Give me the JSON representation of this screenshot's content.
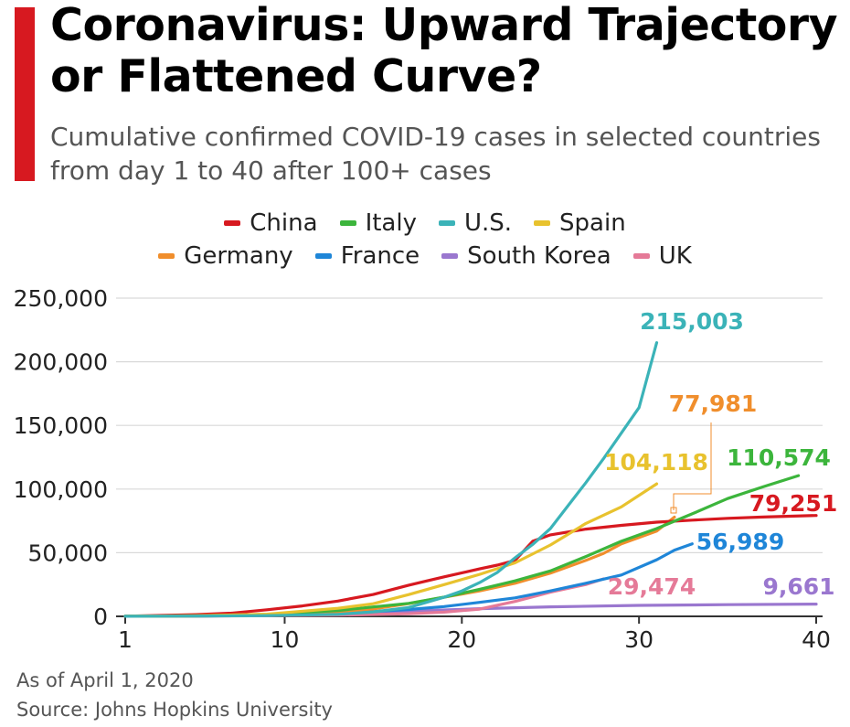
{
  "header": {
    "title": "Coronavirus: Upward Trajectory or Flattened Curve?",
    "subtitle": "Cumulative confirmed COVID-19 cases in selected countries from day 1 to 40 after 100+ cases"
  },
  "colors": {
    "accent": "#d71920",
    "china": "#d71920",
    "italy": "#3cb53c",
    "us": "#3bb3b8",
    "spain": "#e8c22e",
    "germany": "#f08e2c",
    "france": "#1f86d8",
    "south_korea": "#9a77cf",
    "uk": "#e57a98",
    "grid": "#d9d9d9",
    "axis": "#333333"
  },
  "footer": {
    "as_of": "As of April 1, 2020",
    "source": "Source: Johns Hopkins University"
  },
  "chart_data": {
    "type": "line",
    "x_ticks": [
      1,
      10,
      20,
      30,
      40
    ],
    "y_ticks": [
      0,
      50000,
      100000,
      150000,
      200000,
      250000
    ],
    "y_tick_labels": [
      "0",
      "50,000",
      "100,000",
      "150,000",
      "200,000",
      "250,000"
    ],
    "xlim": [
      1,
      40
    ],
    "ylim": [
      0,
      250000
    ],
    "grid": "horizontal",
    "legend_position": "top-center",
    "legend_rows": [
      [
        "china",
        "italy",
        "us",
        "spain"
      ],
      [
        "germany",
        "france",
        "south_korea",
        "uk"
      ]
    ],
    "series": [
      {
        "key": "china",
        "name": "China",
        "color": "#d71920",
        "end_label": "79,251",
        "x": [
          1,
          3,
          5,
          7,
          9,
          11,
          13,
          15,
          17,
          19,
          21,
          22,
          23,
          24,
          25,
          27,
          29,
          31,
          33,
          35,
          37,
          40
        ],
        "y": [
          100,
          700,
          1400,
          2500,
          5200,
          8200,
          12000,
          17200,
          24500,
          31000,
          37300,
          40200,
          44000,
          59000,
          64000,
          68500,
          71500,
          74000,
          75600,
          77000,
          78000,
          79251
        ]
      },
      {
        "key": "italy",
        "name": "Italy",
        "color": "#3cb53c",
        "end_label": "110,574",
        "x": [
          1,
          5,
          9,
          13,
          15,
          17,
          19,
          21,
          23,
          25,
          27,
          29,
          31,
          33,
          35,
          37,
          39
        ],
        "y": [
          100,
          500,
          1600,
          4600,
          7400,
          10200,
          15100,
          21200,
          27900,
          35700,
          47000,
          59000,
          69000,
          80500,
          92500,
          101700,
          110574
        ]
      },
      {
        "key": "us",
        "name": "U.S.",
        "color": "#3bb3b8",
        "end_label": "215,003",
        "x": [
          1,
          5,
          9,
          13,
          15,
          17,
          19,
          20,
          21,
          22,
          23,
          24,
          25,
          26,
          27,
          28,
          29,
          30,
          31
        ],
        "y": [
          100,
          200,
          600,
          1600,
          3500,
          7000,
          15000,
          20000,
          26500,
          34500,
          46000,
          56500,
          69000,
          87000,
          105000,
          124000,
          144000,
          164000,
          215003
        ]
      },
      {
        "key": "spain",
        "name": "Spain",
        "color": "#e8c22e",
        "end_label": "104,118",
        "x": [
          1,
          5,
          9,
          13,
          15,
          17,
          19,
          21,
          23,
          25,
          27,
          29,
          31
        ],
        "y": [
          100,
          400,
          1700,
          6300,
          9900,
          17100,
          24900,
          33000,
          42000,
          56000,
          73000,
          86000,
          104118
        ]
      },
      {
        "key": "germany",
        "name": "Germany",
        "color": "#f08e2c",
        "end_label": "77,981",
        "x": [
          1,
          5,
          9,
          13,
          15,
          17,
          19,
          21,
          23,
          25,
          27,
          28,
          29,
          31,
          32
        ],
        "y": [
          100,
          300,
          900,
          3600,
          5800,
          10000,
          15000,
          20000,
          26000,
          34000,
          44000,
          49500,
          57000,
          67000,
          77981
        ]
      },
      {
        "key": "france",
        "name": "France",
        "color": "#1f86d8",
        "end_label": "56,989",
        "x": [
          1,
          5,
          9,
          13,
          15,
          17,
          19,
          21,
          23,
          25,
          27,
          29,
          31,
          32,
          33
        ],
        "y": [
          100,
          300,
          700,
          1800,
          3700,
          5400,
          7700,
          11000,
          14500,
          20000,
          26000,
          32500,
          44500,
          52000,
          56989
        ]
      },
      {
        "key": "south_korea",
        "name": "South Korea",
        "color": "#9a77cf",
        "end_label": "9,661",
        "x": [
          1,
          5,
          9,
          13,
          17,
          21,
          25,
          30,
          35,
          40
        ],
        "y": [
          100,
          300,
          600,
          2000,
          4000,
          6000,
          7500,
          8600,
          9200,
          9661
        ]
      },
      {
        "key": "uk",
        "name": "UK",
        "color": "#e57a98",
        "end_label": "29,474",
        "x": [
          1,
          5,
          9,
          13,
          17,
          19,
          21,
          23,
          25,
          27,
          28
        ],
        "y": [
          100,
          200,
          500,
          900,
          2100,
          3300,
          5700,
          11700,
          19000,
          25000,
          29474
        ]
      }
    ]
  }
}
